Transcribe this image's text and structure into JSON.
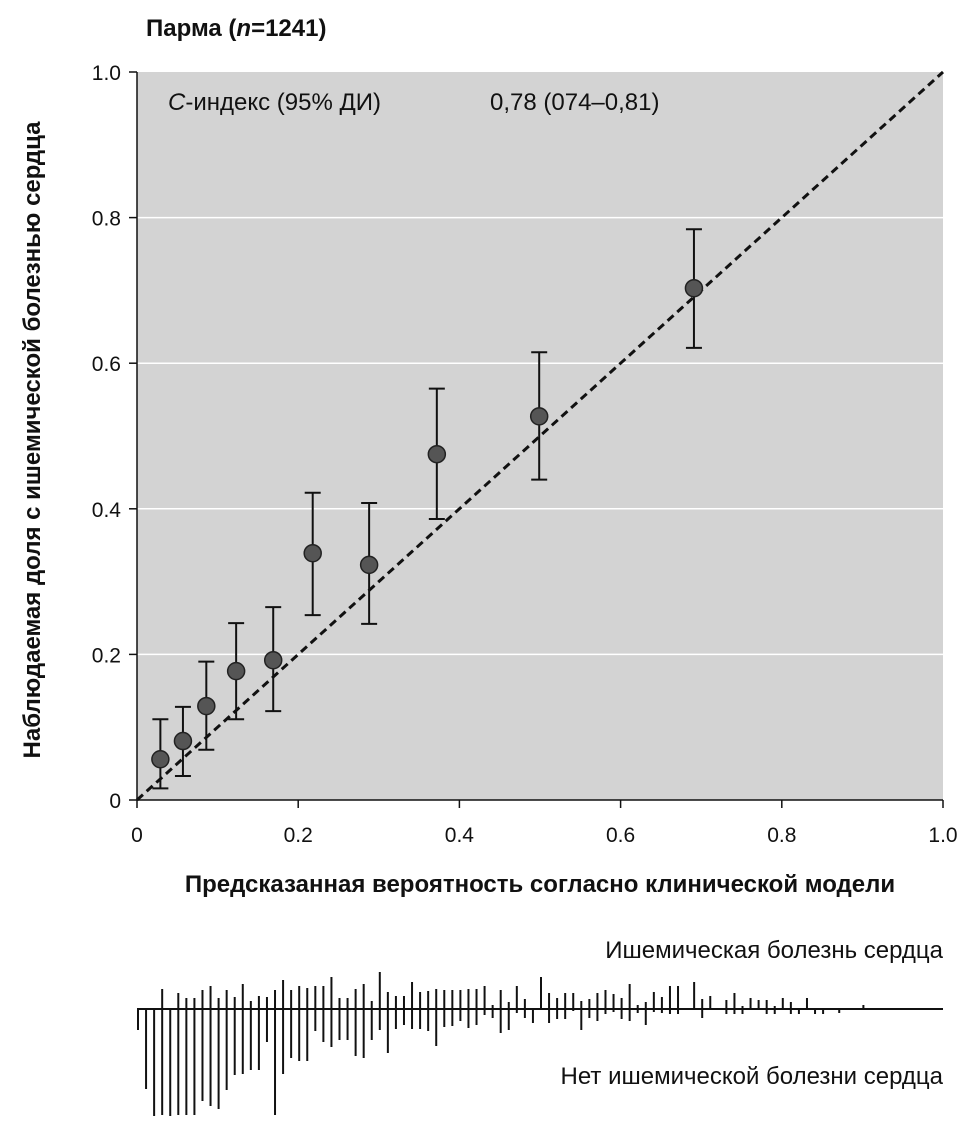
{
  "chart_data": {
    "type": "scatter",
    "title": "Парма (n=1241)",
    "title_prefix": "Парма (",
    "title_n": "n",
    "title_suffix": "=1241)",
    "xlabel": "Предсказанная вероятность согласно клинической модели",
    "ylabel": "Наблюдаемая доля с ишемической болезнью сердца",
    "xlim": [
      0,
      1.0
    ],
    "ylim": [
      0,
      1.0
    ],
    "xticks": [
      0,
      0.2,
      0.4,
      0.6,
      0.8,
      1.0
    ],
    "xtick_labels": [
      "0",
      "0.2",
      "0.4",
      "0.6",
      "0.8",
      "1.0"
    ],
    "yticks": [
      0,
      0.2,
      0.4,
      0.6,
      0.8,
      1.0
    ],
    "ytick_labels": [
      "0",
      "0.2",
      "0.4",
      "0.6",
      "0.8",
      "1.0"
    ],
    "grid": "horizontal",
    "annotation": {
      "label_c": "C",
      "label_rest": "-индекс (95% ДИ)",
      "value": "0,78 (074–0,81)"
    },
    "reference_line": {
      "style": "dashed",
      "from": [
        0,
        0
      ],
      "to": [
        1,
        1
      ]
    },
    "points": [
      {
        "x": 0.029,
        "y": 0.056,
        "lo": 0.016,
        "hi": 0.111
      },
      {
        "x": 0.057,
        "y": 0.081,
        "lo": 0.033,
        "hi": 0.128
      },
      {
        "x": 0.086,
        "y": 0.129,
        "lo": 0.069,
        "hi": 0.19
      },
      {
        "x": 0.123,
        "y": 0.177,
        "lo": 0.111,
        "hi": 0.243
      },
      {
        "x": 0.169,
        "y": 0.192,
        "lo": 0.122,
        "hi": 0.265
      },
      {
        "x": 0.218,
        "y": 0.339,
        "lo": 0.254,
        "hi": 0.422
      },
      {
        "x": 0.288,
        "y": 0.323,
        "lo": 0.242,
        "hi": 0.408
      },
      {
        "x": 0.372,
        "y": 0.475,
        "lo": 0.386,
        "hi": 0.565
      },
      {
        "x": 0.499,
        "y": 0.527,
        "lo": 0.44,
        "hi": 0.615
      },
      {
        "x": 0.691,
        "y": 0.703,
        "lo": 0.621,
        "hi": 0.784
      }
    ],
    "rug": {
      "label_up": "Ишемическая болезнь сердца",
      "label_down": "Нет ишемической болезни сердца",
      "bin_start": 0.0,
      "bin_width": 0.01,
      "up": [
        1,
        0,
        1,
        20,
        0,
        16,
        11,
        11,
        19,
        23,
        11,
        19,
        12,
        25,
        8,
        13,
        12,
        19,
        29,
        19,
        23,
        21,
        23,
        23,
        32,
        11,
        11,
        20,
        25,
        8,
        37,
        17,
        13,
        13,
        27,
        17,
        18,
        20,
        19,
        19,
        19,
        20,
        20,
        23,
        4,
        19,
        7,
        23,
        10,
        0,
        32,
        16,
        11,
        16,
        16,
        8,
        10,
        16,
        19,
        15,
        11,
        25,
        4,
        7,
        17,
        12,
        23,
        23,
        0,
        27,
        10,
        13,
        0,
        9,
        16,
        3,
        11,
        9,
        9,
        3,
        11,
        7,
        0,
        11,
        0,
        0,
        0,
        0,
        0,
        0,
        4
      ],
      "down": [
        21,
        80,
        107,
        106,
        107,
        106,
        106,
        106,
        92,
        97,
        100,
        81,
        66,
        65,
        61,
        61,
        33,
        106,
        65,
        49,
        52,
        52,
        22,
        33,
        38,
        31,
        31,
        47,
        49,
        31,
        21,
        44,
        20,
        16,
        20,
        20,
        22,
        37,
        18,
        17,
        12,
        19,
        16,
        6,
        9,
        24,
        21,
        4,
        9,
        14,
        0,
        14,
        10,
        10,
        2,
        21,
        9,
        12,
        5,
        3,
        10,
        12,
        4,
        16,
        3,
        4,
        5,
        5,
        0,
        0,
        9,
        0,
        0,
        5,
        5,
        5,
        0,
        0,
        5,
        5,
        0,
        5,
        5,
        0,
        5,
        5,
        0,
        4,
        0,
        0,
        0
      ]
    },
    "colors": {
      "plot_bg": "#d3d3d3",
      "grid": "#ffffff",
      "point_fill": "#555555",
      "ink": "#111111"
    }
  }
}
